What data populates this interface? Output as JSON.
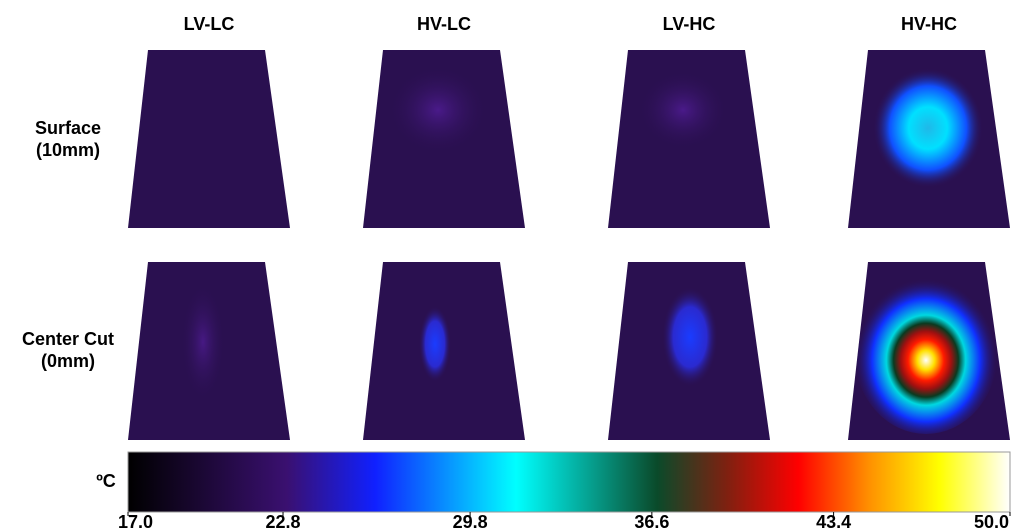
{
  "columns": [
    "LV-LC",
    "HV-LC",
    "LV-HC",
    "HV-HC"
  ],
  "rows": [
    [
      "Surface",
      "(10mm)"
    ],
    [
      "Center Cut",
      "(0mm)"
    ]
  ],
  "colorbar": {
    "unit": "ºC",
    "ticks": [
      {
        "value": 17.0,
        "label": "17.0"
      },
      {
        "value": 22.8,
        "label": "22.8"
      },
      {
        "value": 29.8,
        "label": "29.8"
      },
      {
        "value": 36.6,
        "label": "36.6"
      },
      {
        "value": 43.4,
        "label": "43.4"
      },
      {
        "value": 50.0,
        "label": "50.0"
      }
    ]
  }
}
